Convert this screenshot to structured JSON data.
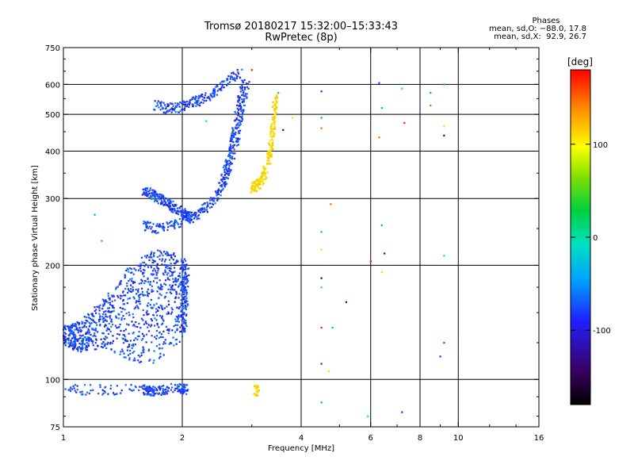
{
  "header": {
    "title_line1": "Tromsø 20180217 15:32:00–15:33:43",
    "title_line2": "RwPretec (8p)"
  },
  "phases_box": {
    "title": "Phases",
    "line_o": "mean, sd,O: −88.0, 17.8",
    "line_x": "mean, sd,X:  92.9, 26.7"
  },
  "chart_data": {
    "type": "scatter",
    "xlabel": "Frequency [MHz]",
    "ylabel": "Stationary phase Virtual Height [km]",
    "x_scale": "log",
    "y_scale": "log",
    "xlim": [
      1,
      16
    ],
    "ylim": [
      75,
      750
    ],
    "x_ticks": [
      "1",
      "2",
      "4",
      "6",
      "8",
      "10",
      "16"
    ],
    "x_tick_values": [
      1,
      2,
      4,
      6,
      8,
      10,
      16
    ],
    "y_ticks": [
      "75",
      "100",
      "200",
      "300",
      "400",
      "500",
      "600",
      "750"
    ],
    "y_tick_values": [
      75,
      100,
      200,
      300,
      400,
      500,
      600,
      750
    ],
    "x_gridlines": [
      2,
      4,
      6,
      8,
      10
    ],
    "y_gridlines": [
      100,
      200,
      300,
      400,
      500,
      600
    ],
    "grid": true,
    "colorbar": {
      "label": "[deg]",
      "ticks": [
        "100",
        "0",
        "-100"
      ],
      "tick_values": [
        100,
        0,
        -100
      ],
      "range": [
        -180,
        180
      ]
    },
    "series": [
      {
        "mode": "O",
        "color_hint": "blue (phase ≈ -88°)",
        "traces": [
          {
            "segment": "E/F1 low-layer cloud",
            "x": [
              1.0,
              1.1,
              1.25,
              1.4,
              1.55,
              1.7,
              1.85,
              2.0,
              2.05
            ],
            "y_center": [
              130,
              130,
              140,
              150,
              160,
              165,
              168,
              170,
              170
            ],
            "y_spread": [
              8,
              12,
              20,
              35,
              50,
              55,
              50,
              40,
              30
            ]
          },
          {
            "segment": "F1 lower trace",
            "x": [
              1.6,
              1.7,
              1.85,
              2.0,
              2.15,
              2.3,
              2.45,
              2.55,
              2.65
            ],
            "y": [
              255,
              250,
              255,
              262,
              270,
              285,
              305,
              335,
              380
            ]
          },
          {
            "segment": "F1 upper cusp",
            "x": [
              1.6,
              1.7,
              1.8,
              1.9,
              2.0,
              2.1
            ],
            "y": [
              315,
              305,
              295,
              285,
              275,
              268
            ]
          },
          {
            "segment": "F2 trace",
            "x": [
              2.55,
              2.62,
              2.7,
              2.75,
              2.8,
              2.85,
              2.9
            ],
            "y": [
              330,
              380,
              420,
              460,
              510,
              560,
              610
            ]
          },
          {
            "segment": "upper F2 fragment",
            "x": [
              1.7,
              1.8,
              1.9,
              2.0,
              2.1,
              2.2,
              2.35,
              2.5,
              2.65,
              2.8
            ],
            "y": [
              530,
              520,
              520,
              525,
              535,
              545,
              560,
              590,
              625,
              640
            ]
          },
          {
            "segment": "sporadic E near 93 km",
            "x": [
              1.02,
              1.6,
              1.7,
              1.95,
              2.05
            ],
            "y": [
              94,
              94,
              93,
              95,
              94
            ]
          }
        ]
      },
      {
        "mode": "X",
        "color_hint": "yellow (phase ≈ 93°)",
        "traces": [
          {
            "segment": "X-mode F trace",
            "x": [
              3.0,
              3.1,
              3.2,
              3.3,
              3.35,
              3.4,
              3.45
            ],
            "y": [
              320,
              325,
              340,
              370,
              410,
              470,
              560
            ]
          },
          {
            "segment": "sporadic E near 93 km",
            "x": [
              3.05,
              3.12
            ],
            "y": [
              93,
              94
            ]
          }
        ]
      },
      {
        "mode": "scattered",
        "points": [
          {
            "x": 4.5,
            "y": 575
          },
          {
            "x": 4.5,
            "y": 490
          },
          {
            "x": 4.5,
            "y": 460
          },
          {
            "x": 4.5,
            "y": 245
          },
          {
            "x": 4.5,
            "y": 220
          },
          {
            "x": 4.5,
            "y": 185
          },
          {
            "x": 4.5,
            "y": 175
          },
          {
            "x": 4.5,
            "y": 137
          },
          {
            "x": 4.5,
            "y": 110
          },
          {
            "x": 4.5,
            "y": 87
          },
          {
            "x": 4.75,
            "y": 290
          },
          {
            "x": 4.8,
            "y": 137
          },
          {
            "x": 4.7,
            "y": 105
          },
          {
            "x": 5.2,
            "y": 160
          },
          {
            "x": 5.9,
            "y": 80
          },
          {
            "x": 6.0,
            "y": 205
          },
          {
            "x": 6.3,
            "y": 605
          },
          {
            "x": 6.4,
            "y": 520
          },
          {
            "x": 6.3,
            "y": 435
          },
          {
            "x": 6.4,
            "y": 255
          },
          {
            "x": 6.4,
            "y": 192
          },
          {
            "x": 6.5,
            "y": 215
          },
          {
            "x": 7.2,
            "y": 585
          },
          {
            "x": 7.3,
            "y": 475
          },
          {
            "x": 7.2,
            "y": 82
          },
          {
            "x": 8.5,
            "y": 570
          },
          {
            "x": 8.5,
            "y": 528
          },
          {
            "x": 9.2,
            "y": 600
          },
          {
            "x": 9.2,
            "y": 465
          },
          {
            "x": 9.2,
            "y": 440
          },
          {
            "x": 9.2,
            "y": 212
          },
          {
            "x": 9.2,
            "y": 125
          },
          {
            "x": 9.0,
            "y": 115
          },
          {
            "x": 1.2,
            "y": 272
          },
          {
            "x": 1.25,
            "y": 232
          },
          {
            "x": 3.5,
            "y": 570
          },
          {
            "x": 3.8,
            "y": 490
          },
          {
            "x": 3.6,
            "y": 455
          },
          {
            "x": 2.3,
            "y": 480
          },
          {
            "x": 3.0,
            "y": 655
          }
        ]
      }
    ]
  }
}
